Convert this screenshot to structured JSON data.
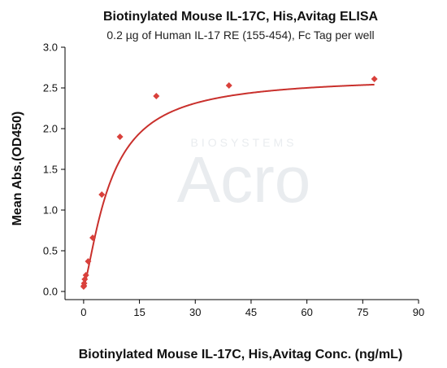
{
  "chart_data": {
    "type": "scatter",
    "title": "Biotinylated Mouse IL-17C, His,Avitag ELISA",
    "subtitle": "0.2 µg of Human IL-17 RE (155-454), Fc Tag per well",
    "xlabel": "Biotinylated Mouse IL-17C, His,Avitag Conc. (ng/mL)",
    "ylabel": "Mean Abs.(OD450)",
    "xlim": [
      -5,
      90
    ],
    "ylim": [
      -0.1,
      3.0
    ],
    "xticks": [
      0,
      15,
      30,
      45,
      60,
      75,
      90
    ],
    "yticks": [
      0.0,
      0.5,
      1.0,
      1.5,
      2.0,
      2.5,
      3.0
    ],
    "ytick_labels": [
      "0.0",
      "0.5",
      "1.0",
      "1.5",
      "2.0",
      "2.5",
      "3.0"
    ],
    "grid": false,
    "legend": "none",
    "series": [
      {
        "marker": "diamond",
        "color": "#d9403b",
        "x": [
          0.0,
          0.076,
          0.15,
          0.3,
          0.61,
          1.22,
          2.44,
          4.88,
          9.77,
          19.53,
          39.06,
          78.13
        ],
        "y": [
          0.06,
          0.07,
          0.1,
          0.15,
          0.2,
          0.37,
          0.66,
          1.19,
          1.9,
          2.4,
          2.53,
          2.61
        ]
      }
    ],
    "fit_curve": {
      "color": "#c9302c",
      "model": "four-parameter logistic"
    },
    "watermark": {
      "brand": "Acro",
      "sub": "BIOSYSTEMS"
    }
  }
}
